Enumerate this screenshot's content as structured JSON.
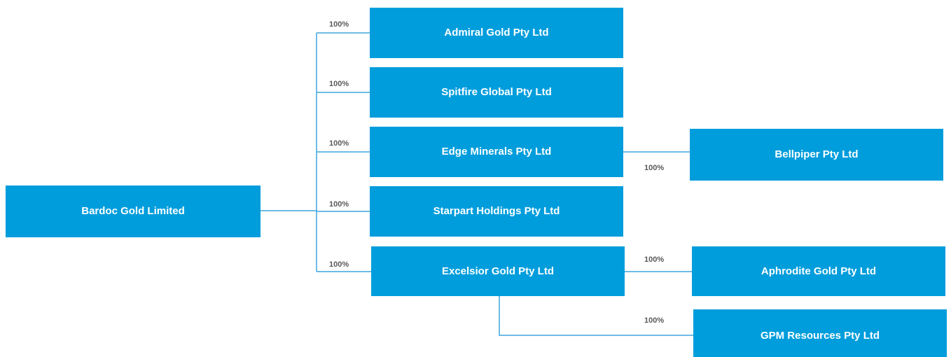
{
  "nodes": [
    {
      "label": "Bardoc Gold Limited"
    },
    {
      "label": "Admiral Gold Pty Ltd"
    },
    {
      "label": "Spitfire Global Pty Ltd"
    },
    {
      "label": "Edge Minerals Pty Ltd"
    },
    {
      "label": "Starpart Holdings Pty Ltd"
    },
    {
      "label": "Excelsior Gold Pty Ltd"
    },
    {
      "label": "Bellpiper Pty Ltd"
    },
    {
      "label": "Aphrodite Gold Pty Ltd"
    },
    {
      "label": "GPM Resources Pty Ltd"
    }
  ],
  "edges": [
    {
      "label": "100%"
    },
    {
      "label": "100%"
    },
    {
      "label": "100%"
    },
    {
      "label": "100%"
    },
    {
      "label": "100%"
    },
    {
      "label": "100%"
    },
    {
      "label": "100%"
    },
    {
      "label": "100%"
    }
  ]
}
